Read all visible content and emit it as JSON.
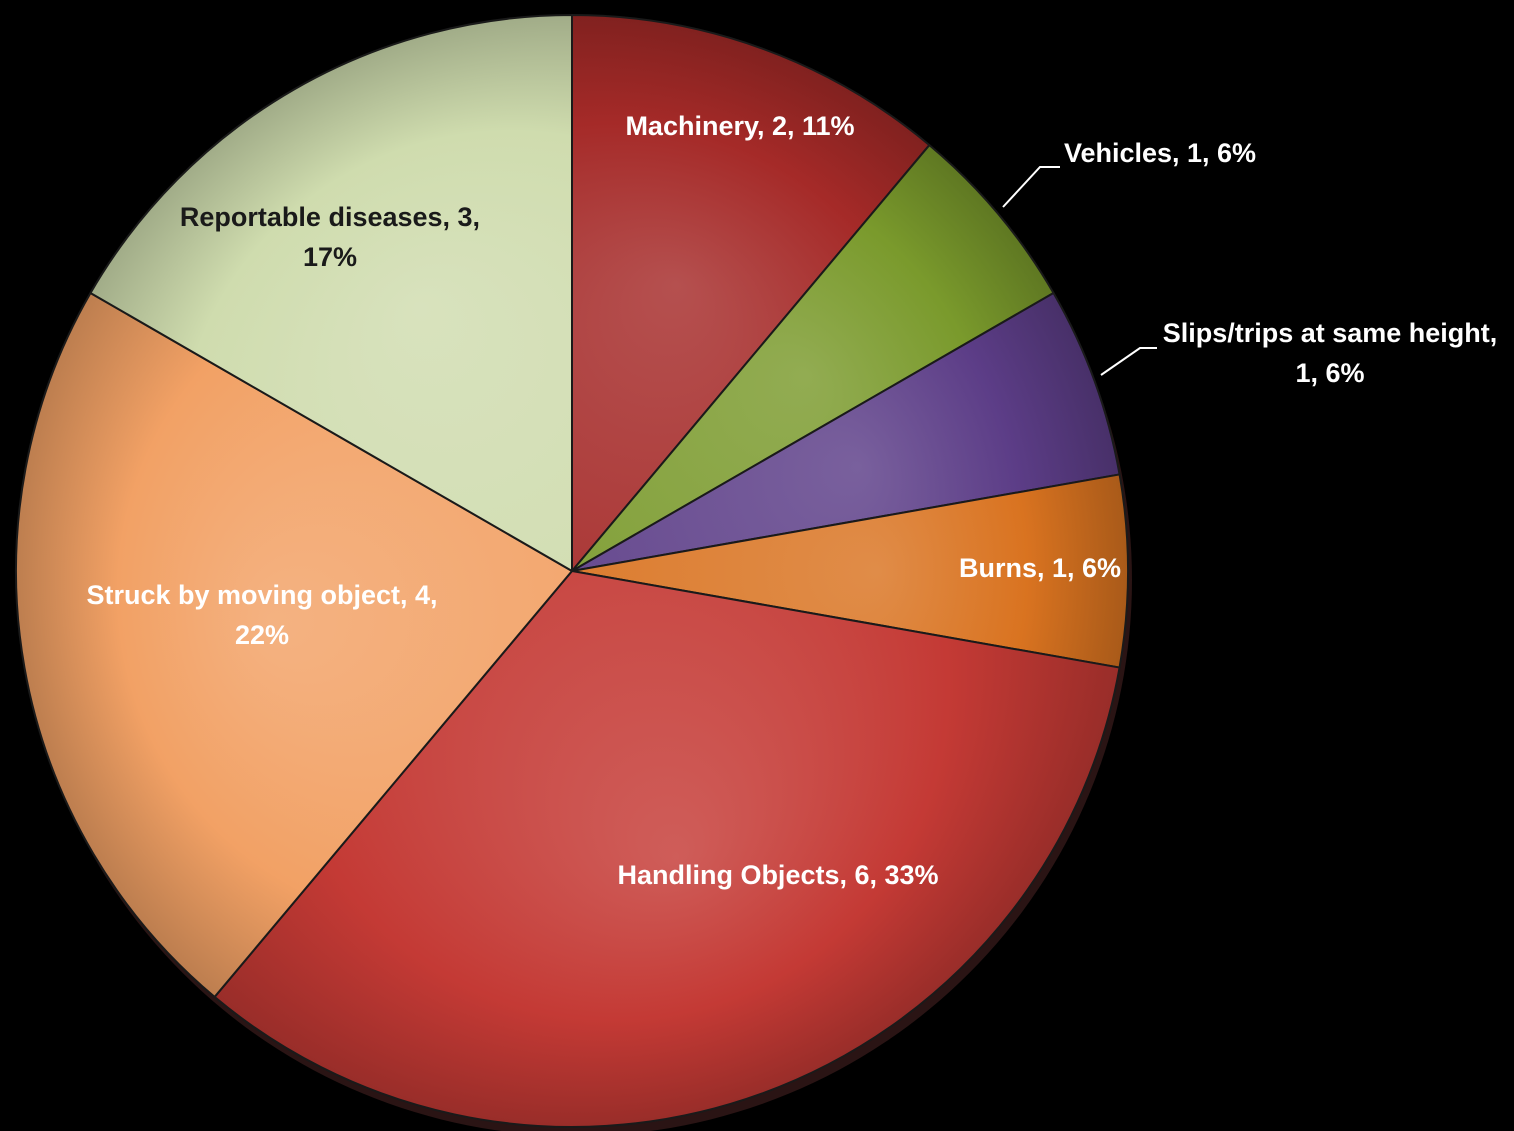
{
  "chart_data": {
    "type": "pie",
    "title": "",
    "series": [
      {
        "label": "Machinery",
        "value": 2,
        "percent": "11%",
        "color": "#a52a28",
        "label_lines": [
          "Machinery, 2, 11%"
        ],
        "text_color": "#ffffff"
      },
      {
        "label": "Vehicles",
        "value": 1,
        "percent": "6%",
        "color": "#7a9a2c",
        "label_lines": [
          "Vehicles, 1, 6%"
        ],
        "text_color": "#ffffff"
      },
      {
        "label": "Slips/trips at same height",
        "value": 1,
        "percent": "6%",
        "color": "#5c3d87",
        "label_lines": [
          "Slips/trips at same height,",
          "1, 6%"
        ],
        "text_color": "#ffffff"
      },
      {
        "label": "Burns",
        "value": 1,
        "percent": "6%",
        "color": "#d97320",
        "label_lines": [
          "Burns, 1, 6%"
        ],
        "text_color": "#ffffff"
      },
      {
        "label": "Handling Objects",
        "value": 6,
        "percent": "33%",
        "color": "#c43a35",
        "label_lines": [
          "Handling Objects, 6, 33%"
        ],
        "text_color": "#ffffff"
      },
      {
        "label": "Struck by moving object",
        "value": 4,
        "percent": "22%",
        "color": "#f2a165",
        "label_lines": [
          "Struck by moving object, 4,",
          "22%"
        ],
        "text_color": "#ffffff"
      },
      {
        "label": "Reportable diseases",
        "value": 3,
        "percent": "17%",
        "color": "#cfdcae",
        "label_lines": [
          "Reportable diseases, 3,",
          "17%"
        ],
        "text_color": "#1a1a1a"
      }
    ]
  }
}
